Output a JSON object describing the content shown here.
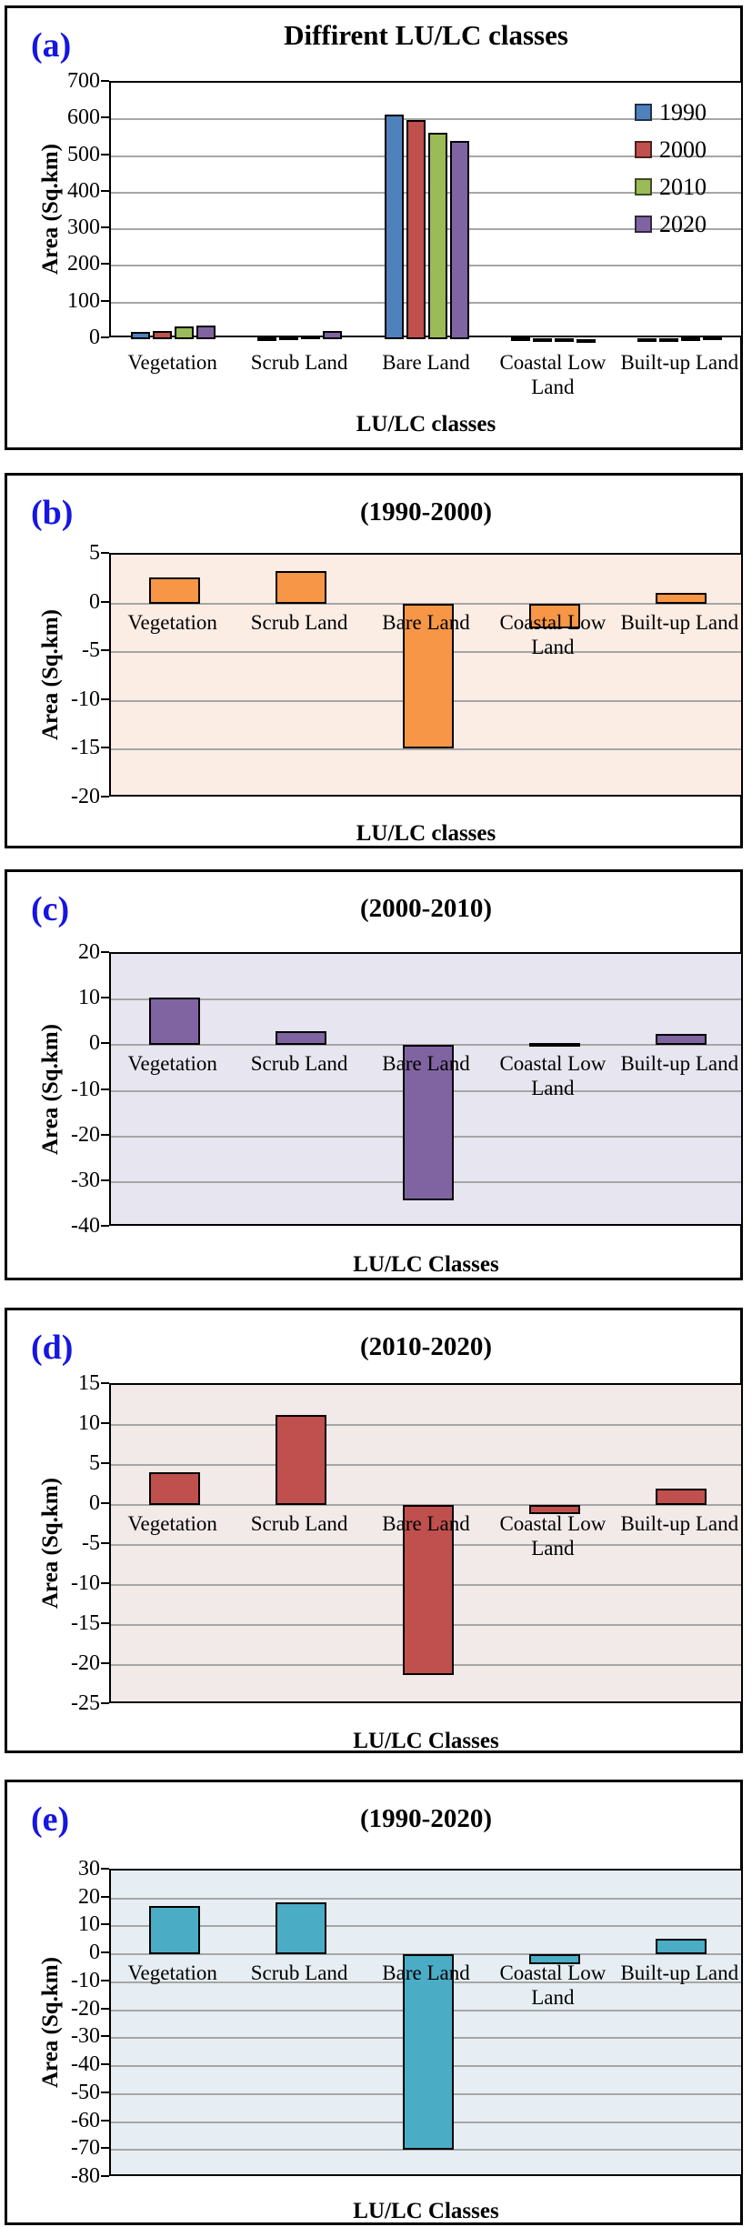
{
  "figure": {
    "panel_label_color": "#1616E0",
    "grid_color": "#A6A6A6",
    "axis_color": "#000000"
  },
  "chart_data": [
    {
      "id": "a",
      "panel_label": "(a)",
      "type": "bar",
      "title": "Diffirent LU/LC classes",
      "xlabel": "LU/LC classes",
      "ylabel": "Area (Sq.km)",
      "categories": [
        "Vegetation",
        "Scrub Land",
        "Bare Land",
        "Coastal Low Land",
        "Built-up Land"
      ],
      "series": [
        {
          "name": "1990",
          "color": "#4F81BD",
          "values": [
            20,
            4,
            612,
            4,
            1.5
          ]
        },
        {
          "name": "2000",
          "color": "#C0504D",
          "values": [
            23,
            7.3,
            597,
            1.4,
            2.6
          ]
        },
        {
          "name": "2010",
          "color": "#9BBB59",
          "values": [
            34,
            10.3,
            563,
            1.9,
            5.1
          ]
        },
        {
          "name": "2020",
          "color": "#8064A2",
          "values": [
            38,
            21.6,
            542,
            0.8,
            7.2
          ]
        }
      ],
      "ylim": [
        0,
        700
      ],
      "ytick": 100,
      "grid": true,
      "legend_position": "right",
      "plot_bg": "#FFFFFF"
    },
    {
      "id": "b",
      "panel_label": "(b)",
      "type": "bar",
      "title": "(1990-2000)",
      "xlabel": "LU/LC classes",
      "ylabel": "Area (Sq.km)",
      "categories": [
        "Vegetation",
        "Scrub Land",
        "Bare Land",
        "Coastal Low Land",
        "Built-up Land"
      ],
      "values": [
        2.7,
        3.3,
        -14.9,
        -2.6,
        1.1
      ],
      "color": "#F79646",
      "ylim": [
        -20,
        5
      ],
      "ytick": 5,
      "grid": true,
      "plot_bg": "#FBECE4"
    },
    {
      "id": "c",
      "panel_label": "(c)",
      "type": "bar",
      "title": "(2000-2010)",
      "xlabel": "LU/LC Classes",
      "ylabel": "Area (Sq.km)",
      "categories": [
        "Vegetation",
        "Scrub Land",
        "Bare Land",
        "Coastal Low Land",
        "Built-up Land"
      ],
      "values": [
        10.5,
        3,
        -34,
        0.5,
        2.5
      ],
      "color": "#8064A2",
      "ylim": [
        -40,
        20
      ],
      "ytick": 10,
      "grid": true,
      "plot_bg": "#E7E5EF"
    },
    {
      "id": "d",
      "panel_label": "(d)",
      "type": "bar",
      "title": "(2010-2020)",
      "xlabel": "LU/LC Classes",
      "ylabel": "Area (Sq.km)",
      "categories": [
        "Vegetation",
        "Scrub Land",
        "Bare Land",
        "Coastal Low Land",
        "Built-up Land"
      ],
      "values": [
        4.1,
        11.3,
        -21.2,
        -1.1,
        2.1
      ],
      "color": "#C0504D",
      "ylim": [
        -25,
        15
      ],
      "ytick": 5,
      "grid": true,
      "plot_bg": "#F2E9E9"
    },
    {
      "id": "e",
      "panel_label": "(e)",
      "type": "bar",
      "title": "(1990-2020)",
      "xlabel": "LU/LC Classes",
      "ylabel": "Area (Sq.km)",
      "categories": [
        "Vegetation",
        "Scrub Land",
        "Bare Land",
        "Coastal Low Land",
        "Built-up Land"
      ],
      "values": [
        17.3,
        18.7,
        -70,
        -3.5,
        5.7
      ],
      "color": "#4BACC6",
      "ylim": [
        -80,
        30
      ],
      "ytick": 10,
      "grid": true,
      "plot_bg": "#E6EEF3"
    }
  ]
}
